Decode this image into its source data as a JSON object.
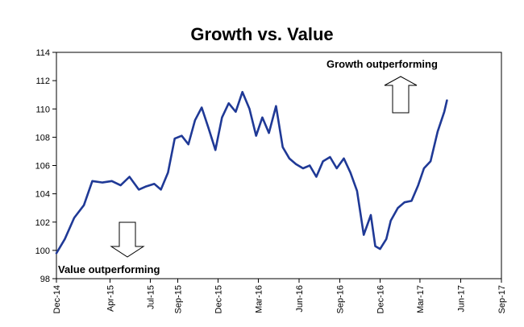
{
  "chart_data": {
    "type": "line",
    "title": "Growth vs. Value",
    "xlabel": "",
    "ylabel": "",
    "ylim": [
      98,
      114
    ],
    "yticks": [
      "98",
      "100",
      "102",
      "104",
      "106",
      "108",
      "110",
      "112",
      "114"
    ],
    "xticks": [
      "Dec-14",
      "Apr-15",
      "Jul-15",
      "Sep-15",
      "Dec-15",
      "Mar-16",
      "Jun-16",
      "Sep-16",
      "Dec-16",
      "Mar-17",
      "Jun-17",
      "Sep-17"
    ],
    "grid": false,
    "legend": "none",
    "series": [
      {
        "color": "#1f3996",
        "x": [
          "2014-12-01",
          "2014-12-20",
          "2015-01-10",
          "2015-02-01",
          "2015-02-20",
          "2015-03-15",
          "2015-04-05",
          "2015-04-25",
          "2015-05-15",
          "2015-06-05",
          "2015-06-20",
          "2015-07-10",
          "2015-07-25",
          "2015-08-10",
          "2015-08-25",
          "2015-09-10",
          "2015-09-25",
          "2015-10-10",
          "2015-10-25",
          "2015-11-10",
          "2015-11-25",
          "2015-12-10",
          "2015-12-25",
          "2016-01-10",
          "2016-01-25",
          "2016-02-10",
          "2016-02-25",
          "2016-03-10",
          "2016-03-25",
          "2016-04-10",
          "2016-04-25",
          "2016-05-10",
          "2016-05-25",
          "2016-06-10",
          "2016-06-25",
          "2016-07-10",
          "2016-07-25",
          "2016-08-10",
          "2016-08-25",
          "2016-09-10",
          "2016-09-25",
          "2016-10-10",
          "2016-10-25",
          "2016-11-10",
          "2016-11-20",
          "2016-12-01",
          "2016-12-15",
          "2016-12-25",
          "2017-01-10",
          "2017-01-25",
          "2017-02-10",
          "2017-02-25",
          "2017-03-10",
          "2017-03-25",
          "2017-04-10",
          "2017-04-25",
          "2017-05-01"
        ],
        "values": [
          99.8,
          100.8,
          102.3,
          103.2,
          104.9,
          104.8,
          104.9,
          104.6,
          105.2,
          104.3,
          104.5,
          104.7,
          104.3,
          105.5,
          107.9,
          108.1,
          107.5,
          109.2,
          110.1,
          108.6,
          107.1,
          109.4,
          110.4,
          109.8,
          111.2,
          110.0,
          108.1,
          109.4,
          108.3,
          110.2,
          107.3,
          106.5,
          106.1,
          105.8,
          106.0,
          105.2,
          106.3,
          106.6,
          105.8,
          106.5,
          105.5,
          104.2,
          101.1,
          102.5,
          100.3,
          100.1,
          100.8,
          102.1,
          103.0,
          103.4,
          103.5,
          104.6,
          105.8,
          106.3,
          108.4,
          109.8,
          110.6
        ]
      }
    ],
    "annotations": [
      {
        "text": "Growth outperforming",
        "arrow": "up"
      },
      {
        "text": "Value outperforming",
        "arrow": "down"
      }
    ]
  }
}
